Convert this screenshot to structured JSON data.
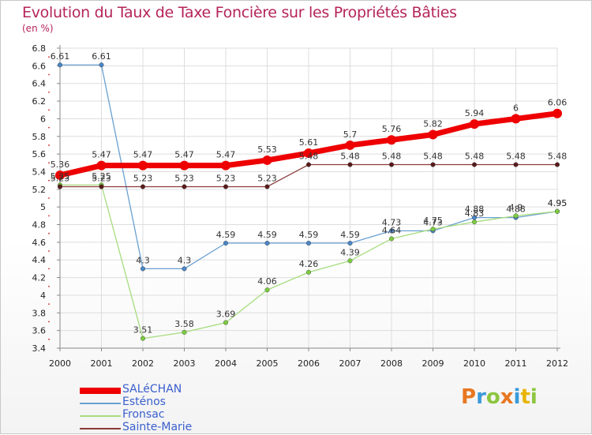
{
  "title": "Evolution du Taux de Taxe Foncière sur les Propriétés Bâties",
  "unit": "(en %)",
  "logo": {
    "letters": [
      "P",
      "r",
      "o",
      "x",
      "i",
      "t",
      "i"
    ],
    "colors": [
      "#e87722",
      "#3a9ad9",
      "#8cc63f",
      "#e87722",
      "#3a9ad9",
      "#e8b400",
      "#8cc63f"
    ]
  },
  "chart_data": {
    "type": "line",
    "title": "Evolution du Taux de Taxe Foncière sur les Propriétés Bâties",
    "ylabel": "(en %)",
    "xlabel": "",
    "ylim": [
      3.4,
      6.8
    ],
    "grid": true,
    "x": [
      "2000",
      "2001",
      "2002",
      "2003",
      "2004",
      "2005",
      "2006",
      "2007",
      "2008",
      "2009",
      "2010",
      "2011",
      "2012"
    ],
    "yticks": [
      "3.4",
      "3.6",
      "3.8",
      "4",
      "4.2",
      "4.4",
      "4.6",
      "4.8",
      "5",
      "5.2",
      "5.4",
      "5.6",
      "5.8",
      "6",
      "6.2",
      "6.4",
      "6.6",
      "6.8"
    ],
    "legend_position": "bottom-left",
    "series": [
      {
        "name": "Esténos",
        "color": "#6aa0d0",
        "marker": "#4a86c8",
        "values": [
          6.61,
          6.61,
          4.3,
          4.3,
          4.59,
          4.59,
          4.59,
          4.59,
          4.73,
          4.73,
          4.88,
          4.88,
          4.95
        ],
        "labels": [
          "6.61",
          "6.61",
          "4.3",
          "4.3",
          "4.59",
          "4.59",
          "4.59",
          "4.59",
          "4.73",
          "4.73",
          "4.88",
          "4.88",
          "4.95"
        ]
      },
      {
        "name": "Fronsac",
        "color": "#a6dc7e",
        "marker": "#7ccd3f",
        "values": [
          5.25,
          5.25,
          3.51,
          3.58,
          3.69,
          4.06,
          4.26,
          4.39,
          4.64,
          4.75,
          4.83,
          4.9,
          4.95
        ],
        "labels": [
          "5.25",
          "5.25",
          "3.51",
          "3.58",
          "3.69",
          "4.06",
          "4.26",
          "4.39",
          "4.64",
          "4.75",
          "4.83",
          "4.9",
          "4.95"
        ]
      },
      {
        "name": "Sainte-Marie",
        "color": "#8b3a3a",
        "marker": "#5a1a1a",
        "values": [
          5.23,
          5.23,
          5.23,
          5.23,
          5.23,
          5.23,
          5.48,
          5.48,
          5.48,
          5.48,
          5.48,
          5.48,
          5.48
        ],
        "labels": [
          "5.23",
          "5.23",
          "5.23",
          "5.23",
          "5.23",
          "5.23",
          "5.48",
          "5.48",
          "5.48",
          "5.48",
          "5.48",
          "5.48",
          "5.48"
        ]
      },
      {
        "name": "SALéCHAN",
        "color": "#ee0000",
        "marker": "#ee0000",
        "values": [
          5.36,
          5.47,
          5.47,
          5.47,
          5.47,
          5.53,
          5.61,
          5.7,
          5.76,
          5.82,
          5.94,
          6.0,
          6.06
        ],
        "labels": [
          "5.36",
          "5.47",
          "5.47",
          "5.47",
          "5.47",
          "5.53",
          "5.61",
          "5.7",
          "5.76",
          "5.82",
          "5.94",
          "6",
          "6.06"
        ]
      }
    ],
    "legend_order": [
      "SALéCHAN",
      "Esténos",
      "Fronsac",
      "Sainte-Marie"
    ]
  }
}
